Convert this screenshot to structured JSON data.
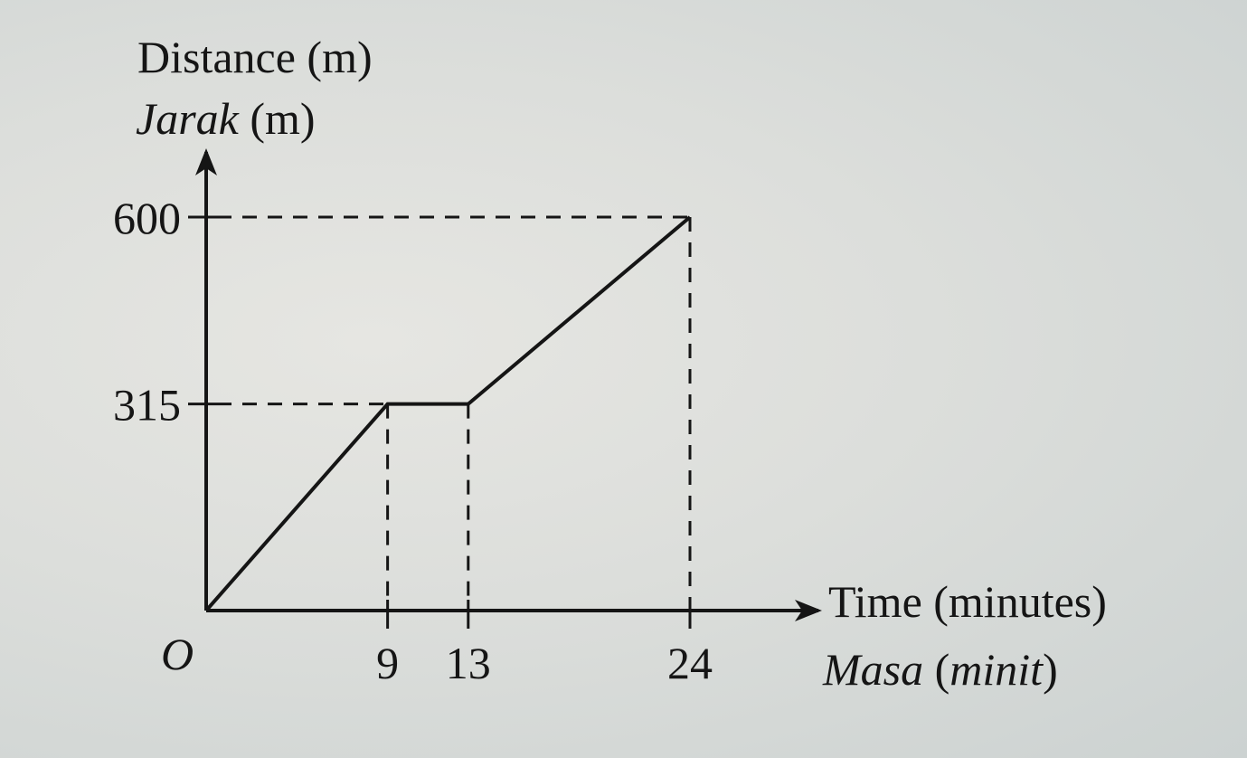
{
  "chart_data": {
    "type": "line",
    "ylabel_en": "Distance (m)",
    "ylabel_ms_italic": "Jarak",
    "ylabel_ms_unit": " (m)",
    "xlabel_en": "Time (minutes)",
    "xlabel_ms_italic": "Masa",
    "xlabel_ms_open": " (",
    "xlabel_ms_unit_italic": "minit",
    "xlabel_ms_close": ")",
    "origin_label": "O",
    "x_ticks": [
      9,
      13,
      24
    ],
    "y_ticks": [
      315,
      600
    ],
    "points": [
      {
        "x": 0,
        "y": 0
      },
      {
        "x": 9,
        "y": 315
      },
      {
        "x": 13,
        "y": 315
      },
      {
        "x": 24,
        "y": 600
      }
    ],
    "xlim": [
      0,
      24
    ],
    "ylim": [
      0,
      600
    ],
    "grid": false,
    "guide_lines": "dashed"
  }
}
